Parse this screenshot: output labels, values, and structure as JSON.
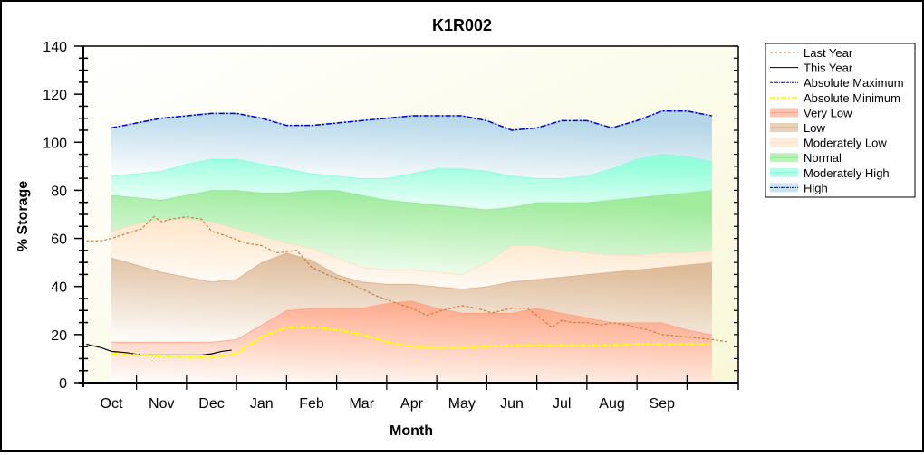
{
  "chart_data": {
    "type": "area",
    "title": "K1R002",
    "xlabel": "Month",
    "ylabel": "% Storage",
    "ylim": [
      0,
      140
    ],
    "yticks": [
      "0",
      "20",
      "40",
      "60",
      "80",
      "100",
      "120",
      "140"
    ],
    "categories": [
      "Oct",
      "Nov",
      "Dec",
      "Jan",
      "Feb",
      "Mar",
      "Apr",
      "May",
      "Jun",
      "Jul",
      "Aug",
      "Sep"
    ],
    "legend_position": "right",
    "x_units": "months from start of October (0-12)",
    "bands": [
      {
        "name": "Very Low",
        "color": "#ff9f80",
        "lower_from": "zero",
        "x": [
          0,
          1,
          1.5,
          2,
          2.5,
          3,
          3.5,
          4,
          4.5,
          5,
          5.5,
          6,
          6.5,
          7,
          7.5,
          8,
          8.5,
          9,
          9.5,
          10,
          10.5,
          11,
          11.5,
          12
        ],
        "upper": [
          17,
          17,
          17,
          17,
          18,
          24,
          30,
          31,
          31,
          31,
          33,
          34,
          31,
          29,
          29,
          29,
          31,
          29,
          27,
          25,
          25,
          25,
          22,
          20
        ]
      },
      {
        "name": "Low",
        "color": "#d9b08c",
        "x": [
          0,
          0.5,
          1,
          1.5,
          2,
          2.5,
          3,
          3.5,
          4,
          4.5,
          5,
          5.5,
          6,
          6.5,
          7,
          7.5,
          8,
          8.5,
          9,
          9.5,
          10,
          10.5,
          11,
          11.5,
          12
        ],
        "upper": [
          52,
          49,
          46,
          44,
          42,
          43,
          50,
          54,
          51,
          45,
          42,
          41,
          41,
          40,
          39,
          40,
          42,
          43,
          44,
          45,
          46,
          47,
          48,
          49,
          50
        ]
      },
      {
        "name": "Moderately Low",
        "color": "#ffe0c0",
        "x": [
          0,
          0.5,
          1,
          1.5,
          2,
          2.5,
          3,
          3.5,
          4,
          4.5,
          5,
          5.5,
          6,
          6.5,
          7,
          7.5,
          8,
          8.5,
          9,
          9.5,
          10,
          10.5,
          11,
          11.5,
          12
        ],
        "upper": [
          63,
          66,
          68,
          68,
          67,
          64,
          61,
          58,
          56,
          52,
          48,
          47,
          47,
          46,
          45,
          50,
          57,
          57,
          55,
          54,
          53,
          53,
          54,
          54,
          55
        ]
      },
      {
        "name": "Normal",
        "color": "#90e890",
        "x": [
          0,
          0.5,
          1,
          1.5,
          2,
          2.5,
          3,
          3.5,
          4,
          4.5,
          5,
          5.5,
          6,
          6.5,
          7,
          7.5,
          8,
          8.5,
          9,
          9.5,
          10,
          10.5,
          11,
          11.5,
          12
        ],
        "upper": [
          78,
          77,
          76,
          78,
          80,
          80,
          79,
          79,
          80,
          80,
          78,
          76,
          75,
          74,
          73,
          72,
          73,
          75,
          75,
          75,
          76,
          77,
          78,
          79,
          80
        ]
      },
      {
        "name": "Moderately High",
        "color": "#80ffd8",
        "x": [
          0,
          0.5,
          1,
          1.5,
          2,
          2.5,
          3,
          3.5,
          4,
          4.5,
          5,
          5.5,
          6,
          6.5,
          7,
          7.5,
          8,
          8.5,
          9,
          9.5,
          10,
          10.5,
          11,
          11.5,
          12
        ],
        "upper": [
          86,
          87,
          88,
          91,
          93,
          93,
          91,
          89,
          87,
          86,
          85,
          85,
          87,
          89,
          89,
          88,
          86,
          85,
          85,
          86,
          89,
          93,
          95,
          94,
          92
        ]
      },
      {
        "name": "High",
        "color": "#a8d0e8",
        "x": [
          0,
          0.5,
          1,
          1.5,
          2,
          2.5,
          3,
          3.5,
          4,
          4.5,
          5,
          5.5,
          6,
          6.5,
          7,
          7.5,
          8,
          8.5,
          9,
          9.5,
          10,
          10.5,
          11,
          11.5,
          12
        ],
        "upper": [
          106,
          108,
          110,
          111,
          112,
          112,
          110,
          107,
          107,
          108,
          109,
          110,
          111,
          111,
          111,
          109,
          105,
          106,
          109,
          109,
          106,
          109,
          113,
          113,
          111
        ]
      }
    ],
    "series": [
      {
        "name": "Last Year",
        "color": "#c87e3a",
        "style": "dashed",
        "x": [
          -0.5,
          -0.2,
          0,
          0.3,
          0.6,
          0.85,
          1.0,
          1.2,
          1.5,
          1.8,
          2.0,
          2.3,
          2.7,
          3.0,
          3.3,
          3.7,
          4.0,
          4.3,
          4.7,
          5.0,
          5.3,
          5.7,
          6.0,
          6.3,
          6.6,
          7.0,
          7.3,
          7.6,
          8.0,
          8.3,
          8.5,
          8.8,
          9.0,
          9.2,
          9.5,
          9.8,
          10.0,
          10.3,
          10.7,
          11.0,
          11.5,
          12.0,
          12.3
        ],
        "y": [
          59,
          59,
          60,
          62,
          64,
          69,
          67,
          68,
          69,
          68,
          63,
          61,
          58,
          57,
          54,
          55,
          48,
          45,
          42,
          39,
          36,
          33,
          31,
          28,
          30,
          32,
          31,
          29,
          31,
          31,
          28,
          23,
          26,
          25,
          25,
          24,
          25,
          24,
          22,
          20,
          19,
          18,
          17
        ]
      },
      {
        "name": "This Year",
        "color": "#000000",
        "style": "solid",
        "x": [
          -0.5,
          -0.2,
          0,
          0.3,
          0.6,
          0.9,
          1.2,
          1.5,
          1.8,
          2.0,
          2.2,
          2.4
        ],
        "y": [
          16,
          14.5,
          13,
          12.5,
          11.5,
          11.5,
          11.5,
          11.5,
          11.5,
          12,
          13,
          13.5
        ]
      },
      {
        "name": "Absolute Maximum",
        "color": "#0000cc",
        "style": "dash-dot",
        "x": [
          0,
          0.5,
          1,
          1.5,
          2,
          2.5,
          3,
          3.5,
          4,
          4.5,
          5,
          5.5,
          6,
          6.5,
          7,
          7.5,
          8,
          8.5,
          9,
          9.5,
          10,
          10.5,
          11,
          11.5,
          12
        ],
        "y": [
          106,
          108,
          110,
          111,
          112,
          112,
          110,
          107,
          107,
          108,
          109,
          110,
          111,
          111,
          111,
          109,
          105,
          106,
          109,
          109,
          106,
          109,
          113,
          113,
          111
        ]
      },
      {
        "name": "Absolute Minimum",
        "color": "#ffff00",
        "style": "dash-dot",
        "x": [
          0,
          0.5,
          1,
          1.5,
          2,
          2.5,
          3,
          3.5,
          4,
          4.5,
          5,
          5.5,
          6,
          6.5,
          7,
          7.5,
          8,
          8.5,
          9,
          9.5,
          10,
          10.5,
          11,
          11.5,
          12
        ],
        "y": [
          12,
          11.5,
          11,
          10.5,
          10.5,
          12,
          19,
          23,
          23,
          22,
          20,
          17,
          15,
          14.5,
          14.5,
          15,
          15.5,
          15.5,
          15.5,
          15.5,
          15.5,
          16,
          16,
          16,
          16
        ]
      }
    ],
    "legend": [
      "Last Year",
      "This Year",
      "Absolute Maximum",
      "Absolute Minimum",
      "Very Low",
      "Low",
      "Moderately Low",
      "Normal",
      "Moderately High",
      "High"
    ]
  }
}
